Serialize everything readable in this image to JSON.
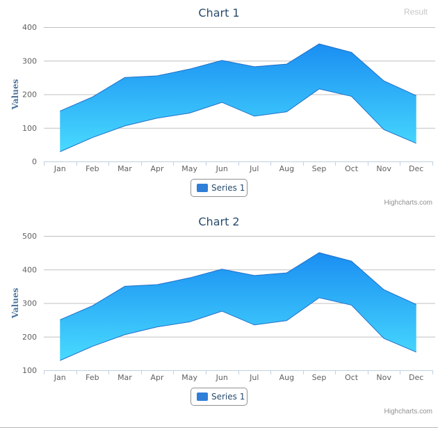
{
  "header": {
    "result_label": "Result"
  },
  "credits": "Highcharts.com",
  "colors": {
    "area_top": "#1a8ef2",
    "area_bottom": "#48dafe",
    "legend": "#2f7ed8",
    "line": "#2f7ed8"
  },
  "chart_data": [
    {
      "type": "arearange",
      "title": "Chart 1",
      "ylabel": "Values",
      "xlabel": "",
      "categories": [
        "Jan",
        "Feb",
        "Mar",
        "Apr",
        "May",
        "Jun",
        "Jul",
        "Aug",
        "Sep",
        "Oct",
        "Nov",
        "Dec"
      ],
      "ylim": [
        0,
        400
      ],
      "yticks": [
        0,
        100,
        200,
        300,
        400
      ],
      "series": [
        {
          "name": "Series 1",
          "low": [
            29,
            71,
            106,
            129,
            144,
            176,
            135,
            148,
            216,
            194,
            95,
            54
          ],
          "high": [
            150,
            192,
            250,
            255,
            275,
            301,
            282,
            290,
            350,
            325,
            240,
            196
          ]
        }
      ],
      "legend": "bottom-center"
    },
    {
      "type": "arearange",
      "title": "Chart 2",
      "ylabel": "Values",
      "xlabel": "",
      "categories": [
        "Jan",
        "Feb",
        "Mar",
        "Apr",
        "May",
        "Jun",
        "Jul",
        "Aug",
        "Sep",
        "Oct",
        "Nov",
        "Dec"
      ],
      "ylim": [
        100,
        500
      ],
      "yticks": [
        100,
        200,
        300,
        400,
        500
      ],
      "series": [
        {
          "name": "Series 1",
          "low": [
            129,
            171,
            206,
            229,
            244,
            276,
            235,
            248,
            316,
            294,
            195,
            154
          ],
          "high": [
            250,
            292,
            350,
            355,
            375,
            401,
            382,
            390,
            450,
            425,
            340,
            296
          ]
        }
      ],
      "legend": "bottom-center"
    }
  ]
}
